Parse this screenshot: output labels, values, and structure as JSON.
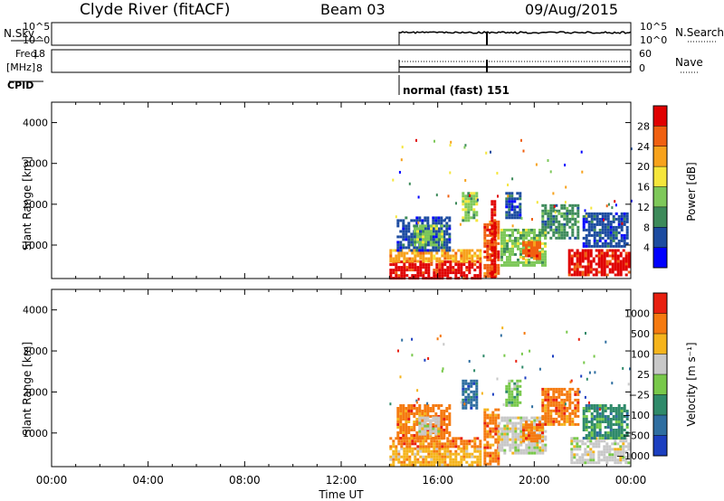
{
  "header": {
    "title": "Clyde River (fitACF)",
    "beam": "Beam 03",
    "date": "09/Aug/2015"
  },
  "top_panels": {
    "nsky_label": "N.Sky",
    "nsky_ticks": [
      "10^5",
      "10^0"
    ],
    "nsearch_label": "N.Search",
    "nsearch_ticks": [
      "10^5",
      "10^0"
    ],
    "freq_label": "Freq.",
    "freq_unit": "[MHz]",
    "freq_ticks": [
      "18",
      "8"
    ],
    "nave_label": "Nave",
    "nave_ticks": [
      "60",
      "0"
    ],
    "cpid_label": "CPID",
    "cpid_text": "normal (fast) 151"
  },
  "x_axis": {
    "label": "Time UT",
    "ticks": [
      "00:00",
      "04:00",
      "08:00",
      "12:00",
      "16:00",
      "20:00",
      "00:00"
    ]
  },
  "chart_data": [
    {
      "type": "heatmap",
      "panel": "power",
      "ylabel": "Slant Range [km]",
      "yticks": [
        "1000",
        "2000",
        "3000",
        "4000"
      ],
      "ylim": [
        180,
        4500
      ],
      "xlim_hours": [
        0,
        24
      ],
      "data_start_hour": 14.0,
      "colorbar": {
        "label": "Power [dB]",
        "ticks": [
          "4",
          "8",
          "12",
          "16",
          "20",
          "24",
          "28"
        ],
        "range": [
          0,
          32
        ],
        "colors": [
          "#0000ff",
          "#1c4ba0",
          "#3d8a5a",
          "#7ec85a",
          "#f5e63c",
          "#f7a21c",
          "#f06010",
          "#e00000"
        ]
      },
      "regions": [
        {
          "t0": 14.0,
          "t1": 17.8,
          "r0": 200,
          "r1": 620,
          "level": 7
        },
        {
          "t0": 14.0,
          "t1": 17.8,
          "r0": 620,
          "r1": 900,
          "level": 5
        },
        {
          "t0": 14.3,
          "t1": 16.5,
          "r0": 900,
          "r1": 1700,
          "level": 1
        },
        {
          "t0": 15.0,
          "t1": 16.2,
          "r0": 1000,
          "r1": 1500,
          "level": 3
        },
        {
          "t0": 17.9,
          "t1": 18.5,
          "r0": 250,
          "r1": 1600,
          "level": 6
        },
        {
          "t0": 18.2,
          "t1": 18.4,
          "r0": 200,
          "r1": 2100,
          "level": 7
        },
        {
          "t0": 18.6,
          "t1": 20.5,
          "r0": 500,
          "r1": 1400,
          "level": 3
        },
        {
          "t0": 19.5,
          "t1": 20.2,
          "r0": 700,
          "r1": 1100,
          "level": 6
        },
        {
          "t0": 20.3,
          "t1": 21.8,
          "r0": 1200,
          "r1": 2000,
          "level": 2
        },
        {
          "t0": 21.4,
          "t1": 23.9,
          "r0": 300,
          "r1": 900,
          "level": 7
        },
        {
          "t0": 22.0,
          "t1": 23.9,
          "r0": 1000,
          "r1": 1800,
          "level": 1
        },
        {
          "t0": 17.0,
          "t1": 17.6,
          "r0": 1600,
          "r1": 2300,
          "level": 3
        },
        {
          "t0": 18.8,
          "t1": 19.4,
          "r0": 1700,
          "r1": 2300,
          "level": 1
        }
      ]
    },
    {
      "type": "heatmap",
      "panel": "velocity",
      "ylabel": "Slant Range [km]",
      "yticks": [
        "1000",
        "2000",
        "3000",
        "4000"
      ],
      "ylim": [
        180,
        4500
      ],
      "xlim_hours": [
        0,
        24
      ],
      "data_start_hour": 14.0,
      "colorbar": {
        "label": "Velocity [m s⁻¹]",
        "ticks": [
          "1000",
          "500",
          "100",
          "25",
          "−25",
          "−100",
          "−500",
          "−1000"
        ],
        "range": [
          -1200,
          1200
        ],
        "colors": [
          "#1c3fc0",
          "#2f6ea0",
          "#2f8a6a",
          "#78c84a",
          "#c8c8c8",
          "#f5b41c",
          "#f57a10",
          "#e82010"
        ]
      },
      "regions": [
        {
          "t0": 14.0,
          "t1": 17.8,
          "r0": 200,
          "r1": 650,
          "level": 5
        },
        {
          "t0": 14.0,
          "t1": 17.8,
          "r0": 650,
          "r1": 900,
          "level": 6
        },
        {
          "t0": 14.3,
          "t1": 16.5,
          "r0": 900,
          "r1": 1700,
          "level": 6
        },
        {
          "t0": 15.2,
          "t1": 16.0,
          "r0": 1000,
          "r1": 1400,
          "level": 4
        },
        {
          "t0": 17.9,
          "t1": 18.5,
          "r0": 250,
          "r1": 1600,
          "level": 6
        },
        {
          "t0": 18.5,
          "t1": 20.5,
          "r0": 500,
          "r1": 1400,
          "level": 4
        },
        {
          "t0": 19.5,
          "t1": 20.3,
          "r0": 800,
          "r1": 1300,
          "level": 6
        },
        {
          "t0": 20.3,
          "t1": 21.8,
          "r0": 1200,
          "r1": 2100,
          "level": 6
        },
        {
          "t0": 21.5,
          "t1": 23.9,
          "r0": 300,
          "r1": 900,
          "level": 4
        },
        {
          "t0": 22.0,
          "t1": 23.9,
          "r0": 900,
          "r1": 1700,
          "level": 2
        },
        {
          "t0": 17.0,
          "t1": 17.6,
          "r0": 1600,
          "r1": 2300,
          "level": 1
        },
        {
          "t0": 18.8,
          "t1": 19.4,
          "r0": 1700,
          "r1": 2300,
          "level": 3
        }
      ]
    }
  ]
}
